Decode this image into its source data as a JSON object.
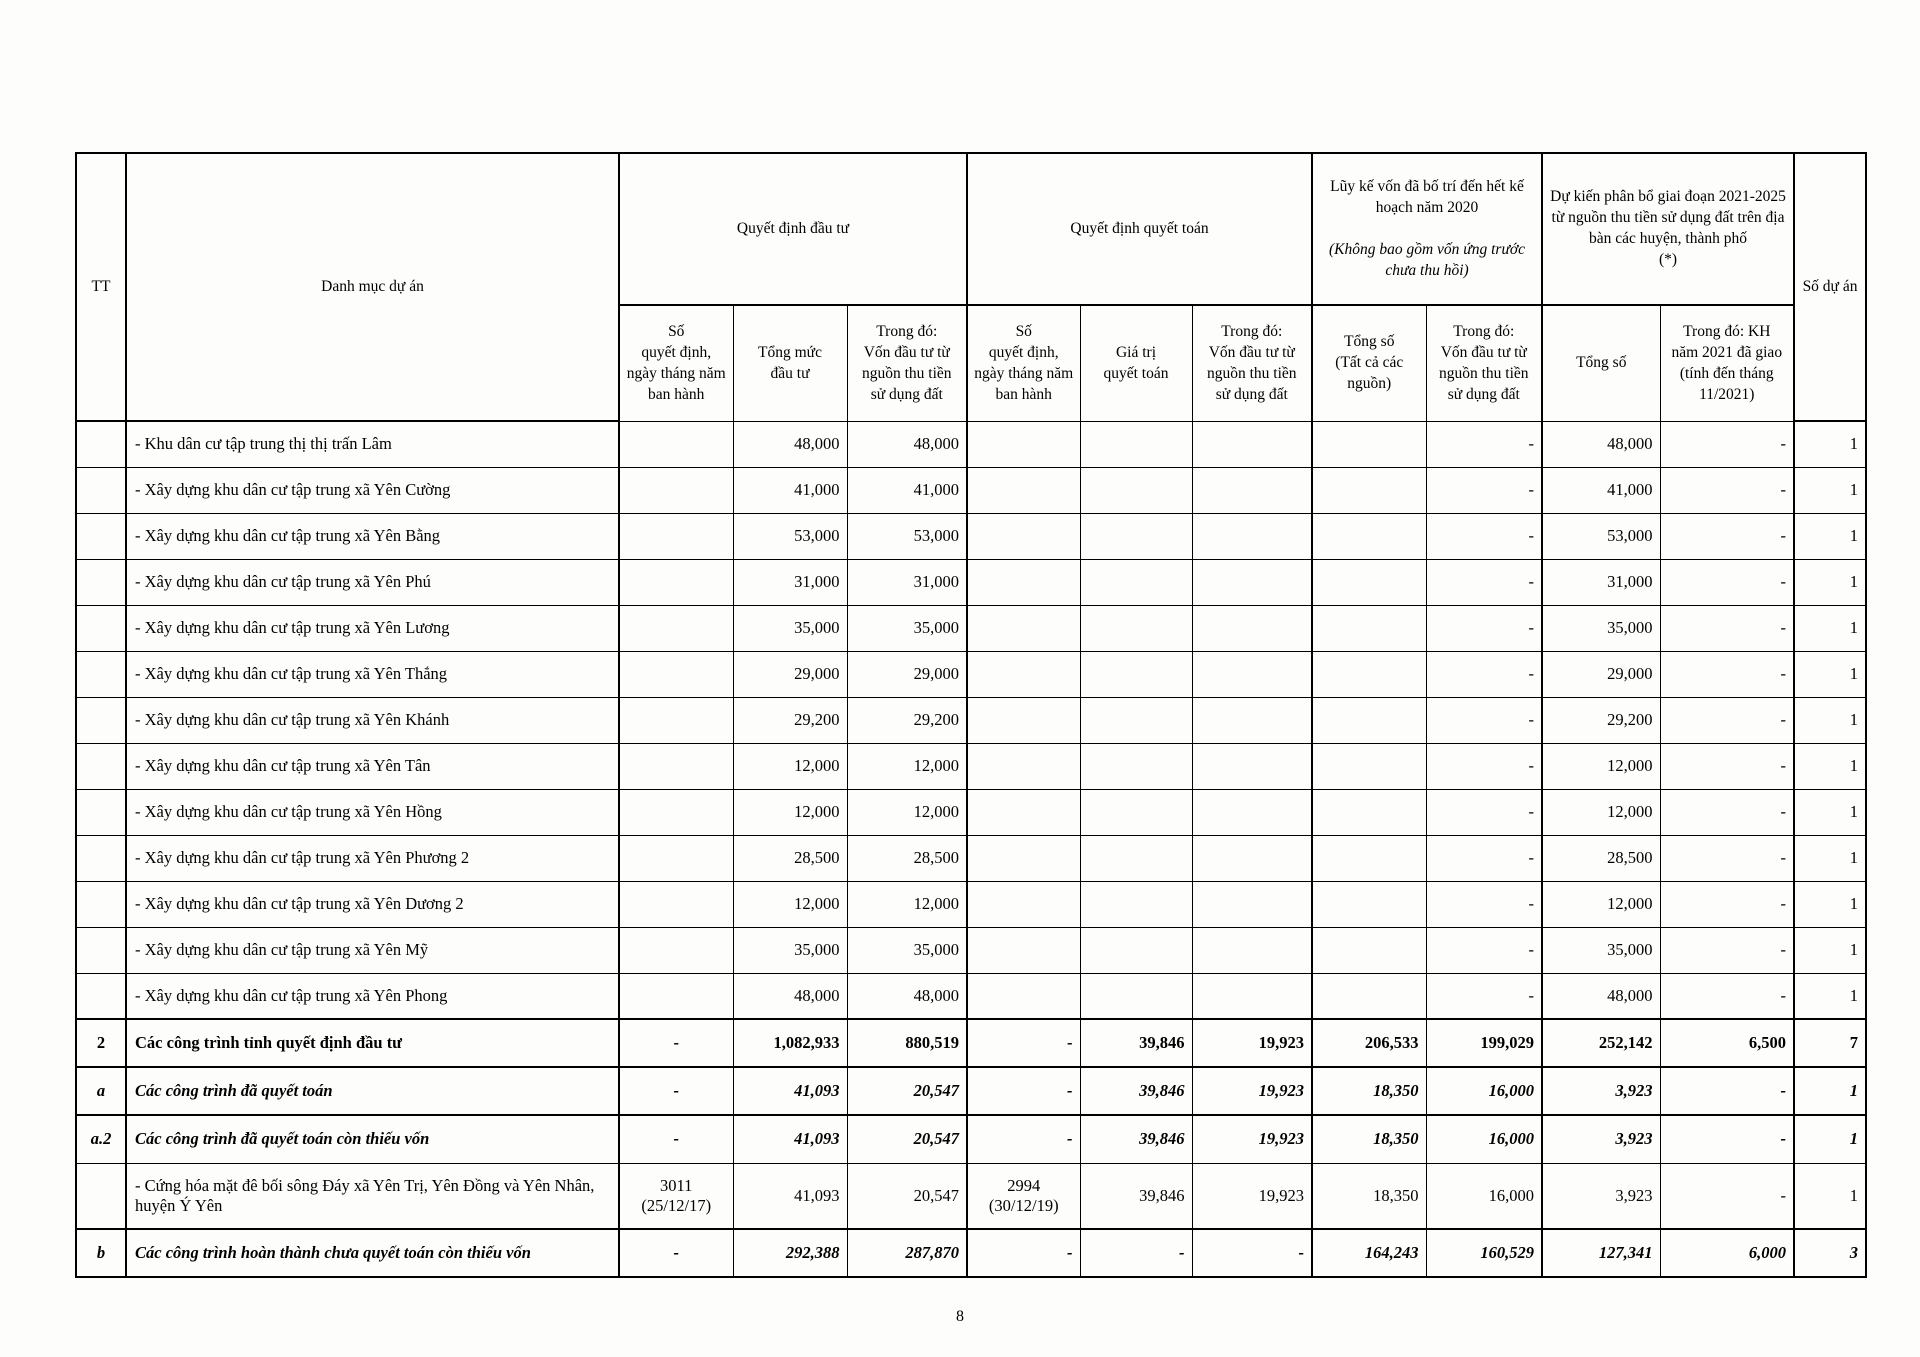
{
  "page": {
    "number": "8"
  },
  "table": {
    "header": {
      "tt": "TT",
      "danh_muc": "Danh mục dự án",
      "so_du_an": "Số dự án",
      "groups": [
        {
          "label": "Quyết định đầu tư"
        },
        {
          "label": "Quyết định quyết toán"
        },
        {
          "label": "Lũy kế vốn đã bố trí đến hết kế hoạch năm 2020",
          "note": "(Không bao gồm vốn ứng trước chưa thu hồi)"
        },
        {
          "label": "Dự kiến phân bổ giai đoạn 2021-2025 từ nguồn thu tiền sử dụng đất trên địa bàn các huyện, thành phố\n(*)"
        }
      ],
      "sub": [
        "Số\nquyết định,\nngày tháng năm\nban hành",
        "Tổng mức\nđầu tư",
        "Trong đó:\nVốn đầu tư từ\nnguồn thu tiền\nsử dụng đất",
        "Số\nquyết định,\nngày tháng năm\nban hành",
        "Giá trị\nquyết toán",
        "Trong đó:\nVốn đầu tư từ\nnguồn thu tiền\nsử dụng đất",
        "Tổng số\n(Tất cả các\nnguồn)",
        "Trong đó:\nVốn đầu tư từ\nnguồn thu tiền\nsử dụng đất",
        "Tổng số",
        "Trong đó: KH\nnăm 2021 đã giao\n(tính đến tháng\n11/2021)"
      ]
    },
    "rows": [
      {
        "tt": "",
        "name": "- Khu dân cư tập trung thị thị trấn Lâm",
        "style": "normal",
        "cells": [
          "",
          "48,000",
          "48,000",
          "",
          "",
          "",
          "",
          "-",
          "48,000",
          "-",
          "1"
        ]
      },
      {
        "tt": "",
        "name": "- Xây dựng khu dân cư tập trung xã Yên Cường",
        "style": "normal",
        "cells": [
          "",
          "41,000",
          "41,000",
          "",
          "",
          "",
          "",
          "-",
          "41,000",
          "-",
          "1"
        ]
      },
      {
        "tt": "",
        "name": "- Xây dựng khu dân cư tập trung xã Yên Bằng",
        "style": "normal",
        "cells": [
          "",
          "53,000",
          "53,000",
          "",
          "",
          "",
          "",
          "-",
          "53,000",
          "-",
          "1"
        ]
      },
      {
        "tt": "",
        "name": "- Xây dựng khu dân cư tập trung xã Yên Phú",
        "style": "normal",
        "cells": [
          "",
          "31,000",
          "31,000",
          "",
          "",
          "",
          "",
          "-",
          "31,000",
          "-",
          "1"
        ]
      },
      {
        "tt": "",
        "name": "- Xây dựng khu dân cư tập trung xã Yên Lương",
        "style": "normal",
        "cells": [
          "",
          "35,000",
          "35,000",
          "",
          "",
          "",
          "",
          "-",
          "35,000",
          "-",
          "1"
        ]
      },
      {
        "tt": "",
        "name": "- Xây dựng khu dân cư tập trung xã Yên Thắng",
        "style": "normal",
        "cells": [
          "",
          "29,000",
          "29,000",
          "",
          "",
          "",
          "",
          "-",
          "29,000",
          "-",
          "1"
        ]
      },
      {
        "tt": "",
        "name": "- Xây dựng khu dân cư tập trung xã Yên Khánh",
        "style": "normal",
        "cells": [
          "",
          "29,200",
          "29,200",
          "",
          "",
          "",
          "",
          "-",
          "29,200",
          "-",
          "1"
        ]
      },
      {
        "tt": "",
        "name": "- Xây dựng khu dân cư tập trung xã Yên Tân",
        "style": "normal",
        "cells": [
          "",
          "12,000",
          "12,000",
          "",
          "",
          "",
          "",
          "-",
          "12,000",
          "-",
          "1"
        ]
      },
      {
        "tt": "",
        "name": "- Xây dựng khu dân cư tập trung xã Yên Hồng",
        "style": "normal",
        "cells": [
          "",
          "12,000",
          "12,000",
          "",
          "",
          "",
          "",
          "-",
          "12,000",
          "-",
          "1"
        ]
      },
      {
        "tt": "",
        "name": "- Xây dựng khu dân cư tập trung xã Yên Phương 2",
        "style": "normal",
        "cells": [
          "",
          "28,500",
          "28,500",
          "",
          "",
          "",
          "",
          "-",
          "28,500",
          "-",
          "1"
        ]
      },
      {
        "tt": "",
        "name": "- Xây dựng khu dân cư tập trung xã Yên Dương 2",
        "style": "normal",
        "cells": [
          "",
          "12,000",
          "12,000",
          "",
          "",
          "",
          "",
          "-",
          "12,000",
          "-",
          "1"
        ]
      },
      {
        "tt": "",
        "name": "- Xây dựng khu dân cư tập trung xã Yên Mỹ",
        "style": "normal",
        "cells": [
          "",
          "35,000",
          "35,000",
          "",
          "",
          "",
          "",
          "-",
          "35,000",
          "-",
          "1"
        ]
      },
      {
        "tt": "",
        "name": "- Xây dựng khu dân cư tập trung xã Yên Phong",
        "style": "normal",
        "cells": [
          "",
          "48,000",
          "48,000",
          "",
          "",
          "",
          "",
          "-",
          "48,000",
          "-",
          "1"
        ]
      },
      {
        "tt": "2",
        "name": "Các công trình tỉnh quyết định đầu tư",
        "style": "bold",
        "cells": [
          "-",
          "1,082,933",
          "880,519",
          "-",
          "39,846",
          "19,923",
          "206,533",
          "199,029",
          "252,142",
          "6,500",
          "7"
        ]
      },
      {
        "tt": "a",
        "name": "Các công trình đã quyết toán",
        "style": "bold-italic",
        "cells": [
          "-",
          "41,093",
          "20,547",
          "-",
          "39,846",
          "19,923",
          "18,350",
          "16,000",
          "3,923",
          "-",
          "1"
        ]
      },
      {
        "tt": "a.2",
        "name": "Các công trình đã quyết toán còn thiếu vốn",
        "style": "bold-italic",
        "cells": [
          "-",
          "41,093",
          "20,547",
          "-",
          "39,846",
          "19,923",
          "18,350",
          "16,000",
          "3,923",
          "-",
          "1"
        ]
      },
      {
        "tt": "",
        "name": "- Cứng hóa mặt đê bối sông Đáy xã Yên Trị, Yên Đồng và Yên Nhân, huyện Ý Yên",
        "style": "normal",
        "tall": true,
        "cells": [
          "3011\n(25/12/17)",
          "41,093",
          "20,547",
          "2994\n(30/12/19)",
          "39,846",
          "19,923",
          "18,350",
          "16,000",
          "3,923",
          "-",
          "1"
        ]
      },
      {
        "tt": "b",
        "name": "Các công trình hoàn thành chưa quyết toán còn thiếu vốn",
        "style": "bold-italic",
        "cells": [
          "-",
          "292,388",
          "287,870",
          "-",
          "-",
          "-",
          "164,243",
          "160,529",
          "127,341",
          "6,000",
          "3"
        ]
      }
    ]
  }
}
